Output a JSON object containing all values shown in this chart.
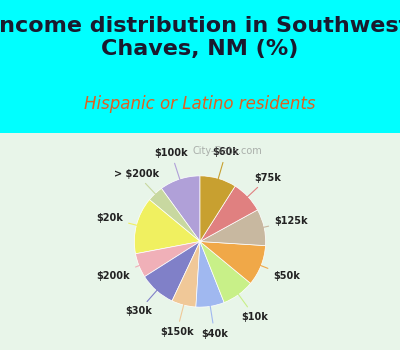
{
  "title": "Income distribution in Southwest\nChaves, NM (%)",
  "subtitle": "Hispanic or Latino residents",
  "background_top": "#00FFFF",
  "background_chart": "#e8f5e9",
  "labels": [
    "$100k",
    "> $200k",
    "$20k",
    "$200k",
    "$30k",
    "$150k",
    "$40k",
    "$10k",
    "$50k",
    "$125k",
    "$75k",
    "$60k"
  ],
  "values": [
    10,
    4,
    14,
    6,
    9,
    6,
    7,
    8,
    10,
    9,
    8,
    9
  ],
  "colors": [
    "#b0a0d8",
    "#c8d8a0",
    "#f0f060",
    "#f0b0b8",
    "#8080c8",
    "#f0c898",
    "#a0b8f0",
    "#c8f088",
    "#f0a848",
    "#c8b8a0",
    "#e08080",
    "#c8a030"
  ],
  "title_fontsize": 16,
  "subtitle_fontsize": 12,
  "watermark": "City-Data.com"
}
